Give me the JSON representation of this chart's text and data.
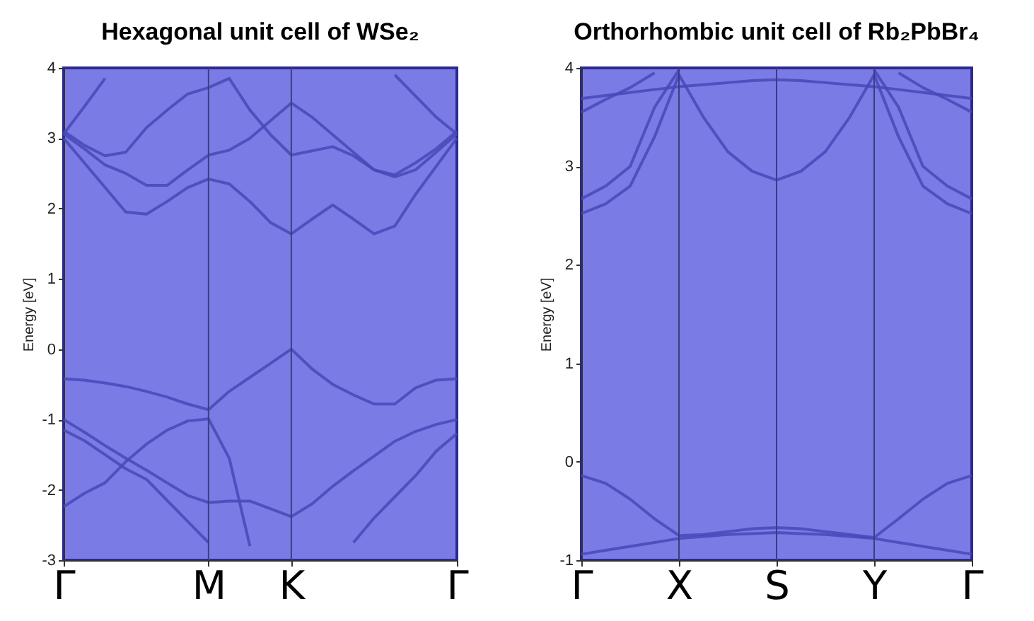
{
  "chart_data": [
    {
      "type": "line",
      "title": "Hexagonal unit cell of WSe₂",
      "ylabel": "Energy [eV]",
      "categories": [
        "Γ",
        null,
        null,
        null,
        null,
        null,
        null,
        "M",
        null,
        null,
        null,
        "K",
        null,
        null,
        null,
        null,
        null,
        null,
        null,
        "Γ"
      ],
      "ylim": [
        -3,
        4
      ],
      "yticks": [
        -3,
        -2,
        -1,
        0,
        1,
        2,
        3,
        4
      ],
      "line_style": "solid",
      "ref_lines": [
        {
          "axis": "x",
          "value": "M",
          "color": "#3c3c80"
        },
        {
          "axis": "x",
          "value": "K",
          "color": "#3c3c80"
        }
      ],
      "series": [
        {
          "color": "#4848b8",
          "values": [
            3.0,
            2.65,
            2.3,
            1.95,
            1.92,
            2.1,
            2.3,
            2.42,
            2.35,
            2.1,
            1.8,
            1.64,
            1.85,
            2.05,
            1.85,
            1.64,
            1.75,
            2.2,
            2.6,
            3.0
          ]
        },
        {
          "color": "#4848b8",
          "values": [
            3.06,
            2.85,
            2.62,
            2.5,
            2.33,
            2.33,
            2.55,
            2.76,
            2.83,
            3.0,
            3.25,
            3.5,
            3.3,
            3.05,
            2.8,
            2.55,
            2.45,
            2.55,
            2.8,
            3.06
          ]
        },
        {
          "color": "#4848b8",
          "values": [
            3.1,
            2.9,
            2.75,
            2.8,
            3.15,
            3.4,
            3.63,
            3.72,
            3.85,
            3.4,
            3.05,
            2.76,
            2.82,
            2.88,
            2.75,
            2.55,
            2.48,
            2.65,
            2.85,
            3.1
          ]
        },
        {
          "color": "#4848b8",
          "values": [
            3.06,
            3.45,
            3.85,
            null,
            null,
            null,
            null,
            null,
            null,
            null,
            null,
            null,
            null,
            null,
            null,
            null,
            null,
            null,
            null,
            null
          ]
        },
        {
          "color": "#4848b8",
          "values": [
            null,
            null,
            null,
            null,
            null,
            null,
            null,
            null,
            null,
            null,
            null,
            null,
            null,
            null,
            null,
            null,
            3.9,
            3.6,
            3.3,
            3.06
          ]
        },
        {
          "color": "#4848b8",
          "values": [
            -0.42,
            -0.44,
            -0.48,
            -0.53,
            -0.6,
            -0.68,
            -0.78,
            -0.86,
            -0.6,
            -0.4,
            -0.2,
            0,
            -0.28,
            -0.5,
            -0.65,
            -0.78,
            -0.78,
            -0.55,
            -0.44,
            -0.42
          ]
        },
        {
          "color": "#4848b8",
          "values": [
            -1.0,
            -1.18,
            -1.37,
            -1.55,
            -1.72,
            -1.9,
            -2.08,
            -2.18,
            -2.16,
            -2.16,
            -2.27,
            -2.38,
            -2.2,
            -1.95,
            -1.73,
            -1.52,
            -1.31,
            -1.17,
            -1.07,
            -1.0
          ]
        },
        {
          "color": "#4848b8",
          "values": [
            -2.24,
            -2.05,
            -1.9,
            -1.6,
            -1.35,
            -1.15,
            -1.02,
            -0.99,
            -1.55,
            -2.8,
            null,
            null,
            null,
            null,
            null,
            null,
            null,
            null,
            null,
            null
          ]
        },
        {
          "color": "#4848b8",
          "values": [
            -1.15,
            -1.3,
            -1.5,
            -1.7,
            -1.85,
            -2.15,
            -2.45,
            -2.75,
            null,
            null,
            null,
            null,
            null,
            null,
            null,
            null,
            null,
            null,
            null,
            null
          ]
        },
        {
          "color": "#4848b8",
          "values": [
            null,
            null,
            null,
            null,
            null,
            null,
            null,
            null,
            null,
            null,
            null,
            null,
            null,
            null,
            -2.75,
            -2.4,
            -2.1,
            -1.8,
            -1.45,
            -1.2
          ]
        }
      ]
    },
    {
      "type": "line",
      "title": "Orthorhombic unit cell of Rb₂PbBr₄",
      "ylabel": "Energy [eV]",
      "categories": [
        "Γ",
        null,
        null,
        null,
        "X",
        null,
        null,
        null,
        "S",
        null,
        null,
        null,
        "Y",
        null,
        null,
        null,
        "Γ"
      ],
      "ylim": [
        -1,
        4
      ],
      "yticks": [
        -1,
        0,
        1,
        2,
        3,
        4
      ],
      "line_style": "solid",
      "ref_lines": [
        {
          "axis": "x",
          "value": "X",
          "color": "#3c3c80"
        },
        {
          "axis": "x",
          "value": "S",
          "color": "#3c3c80"
        },
        {
          "axis": "x",
          "value": "Y",
          "color": "#3c3c80"
        }
      ],
      "series": [
        {
          "color": "#4848b8",
          "values": [
            2.52,
            2.62,
            2.8,
            3.3,
            3.93,
            3.5,
            3.15,
            2.95,
            2.86,
            2.95,
            3.15,
            3.5,
            3.93,
            3.3,
            2.8,
            2.62,
            2.52
          ]
        },
        {
          "color": "#4848b8",
          "values": [
            2.67,
            2.8,
            3.0,
            3.6,
            3.98,
            null,
            null,
            null,
            null,
            null,
            null,
            null,
            null,
            null,
            null,
            null,
            null
          ]
        },
        {
          "color": "#4848b8",
          "values": [
            null,
            null,
            null,
            null,
            null,
            null,
            null,
            null,
            null,
            null,
            null,
            null,
            3.98,
            3.6,
            3.0,
            2.8,
            2.67
          ]
        },
        {
          "color": "#4848b8",
          "values": [
            3.69,
            3.72,
            3.75,
            3.78,
            3.81,
            3.83,
            3.85,
            3.87,
            3.88,
            3.87,
            3.85,
            3.83,
            3.81,
            3.78,
            3.75,
            3.72,
            3.69
          ]
        },
        {
          "color": "#4848b8",
          "values": [
            3.55,
            3.68,
            3.8,
            3.95,
            null,
            null,
            null,
            null,
            null,
            null,
            null,
            null,
            null,
            null,
            null,
            null,
            null
          ]
        },
        {
          "color": "#4848b8",
          "values": [
            null,
            null,
            null,
            null,
            null,
            null,
            null,
            null,
            null,
            null,
            null,
            null,
            null,
            3.95,
            3.8,
            3.68,
            3.55
          ]
        },
        {
          "color": "#4848b8",
          "values": [
            -0.14,
            -0.22,
            -0.38,
            -0.58,
            -0.75,
            -0.74,
            -0.71,
            -0.68,
            -0.67,
            -0.68,
            -0.71,
            -0.74,
            -0.77,
            -0.58,
            -0.38,
            -0.22,
            -0.14
          ]
        },
        {
          "color": "#4848b8",
          "values": [
            -0.94,
            -0.9,
            -0.86,
            -0.82,
            -0.78,
            -0.76,
            -0.74,
            -0.73,
            -0.72,
            -0.73,
            -0.74,
            -0.76,
            -0.78,
            -0.82,
            -0.86,
            -0.9,
            -0.94
          ]
        }
      ]
    }
  ]
}
